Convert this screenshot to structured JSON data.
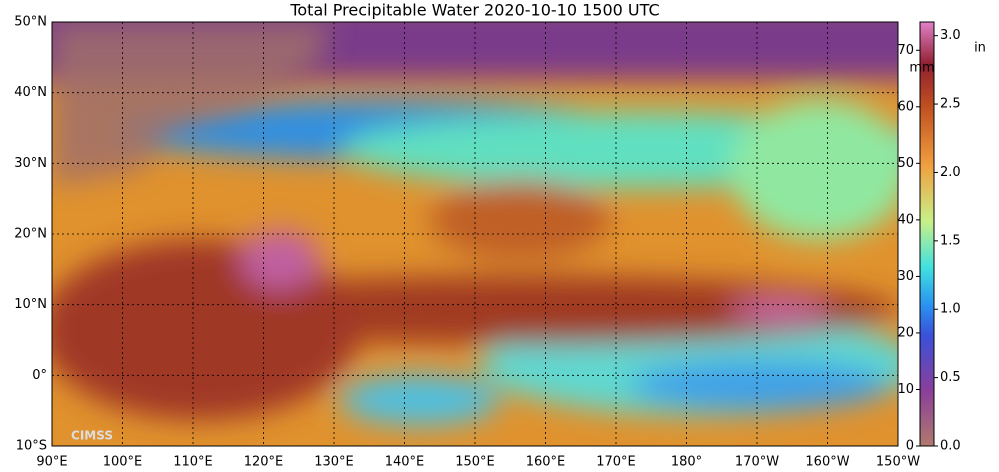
{
  "title": "Total Precipitable Water  2020-10-10 1500 UTC",
  "map": {
    "lat_lim": [
      -10,
      50
    ],
    "lon_lim": [
      90,
      210
    ],
    "lat_ticks": [
      {
        "value": -10,
        "label": "10°S"
      },
      {
        "value": 0,
        "label": "0°"
      },
      {
        "value": 10,
        "label": "10°N"
      },
      {
        "value": 20,
        "label": "20°N"
      },
      {
        "value": 30,
        "label": "30°N"
      },
      {
        "value": 40,
        "label": "40°N"
      },
      {
        "value": 50,
        "label": "50°N"
      }
    ],
    "lon_ticks": [
      {
        "value": 90,
        "label": "90°E"
      },
      {
        "value": 100,
        "label": "100°E"
      },
      {
        "value": 110,
        "label": "110°E"
      },
      {
        "value": 120,
        "label": "120°E"
      },
      {
        "value": 130,
        "label": "130°E"
      },
      {
        "value": 140,
        "label": "140°E"
      },
      {
        "value": 150,
        "label": "150°E"
      },
      {
        "value": 160,
        "label": "160°E"
      },
      {
        "value": 170,
        "label": "170°E"
      },
      {
        "value": 180,
        "label": "180°"
      },
      {
        "value": 190,
        "label": "170°W"
      },
      {
        "value": 200,
        "label": "160°W"
      },
      {
        "value": 210,
        "label": "150°W"
      }
    ],
    "logo": "CIMSS"
  },
  "colorbar": {
    "mm_label": "mm",
    "in_label": "in",
    "mm_lim": [
      0,
      75
    ],
    "mm_ticks": [
      0,
      10,
      20,
      30,
      40,
      50,
      60,
      70
    ],
    "in_lim": [
      0,
      3.1
    ],
    "in_ticks": [
      {
        "value": 0,
        "label": "0.0"
      },
      0.5,
      {
        "value": 1,
        "label": "1.0"
      },
      1.5,
      {
        "value": 2,
        "label": "2.0"
      },
      2.5,
      {
        "value": 3,
        "label": "3.0"
      }
    ]
  }
}
